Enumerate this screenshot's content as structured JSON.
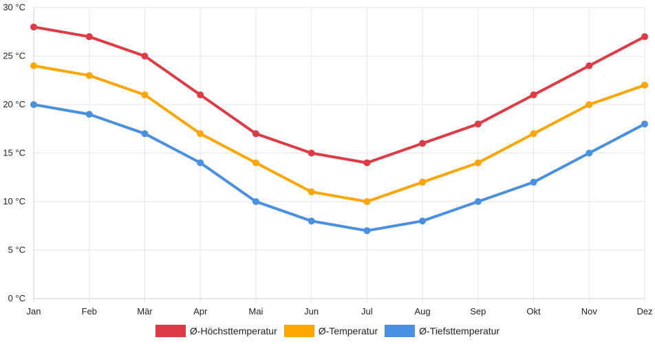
{
  "chart_data": {
    "type": "line",
    "categories": [
      "Jan",
      "Feb",
      "Mär",
      "Apr",
      "Mai",
      "Jun",
      "Jul",
      "Aug",
      "Sep",
      "Okt",
      "Nov",
      "Dez"
    ],
    "series": [
      {
        "name": "Ø-Höchsttemperatur",
        "color": "#e03a46",
        "values": [
          28,
          27,
          25,
          21,
          17,
          15,
          14,
          16,
          18,
          21,
          24,
          27
        ]
      },
      {
        "name": "Ø-Temperatur",
        "color": "#ffa600",
        "values": [
          24,
          23,
          21,
          17,
          14,
          11,
          10,
          12,
          14,
          17,
          20,
          22
        ]
      },
      {
        "name": "Ø-Tiefsttemperatur",
        "color": "#4a90e2",
        "values": [
          20,
          19,
          17,
          14,
          10,
          8,
          7,
          8,
          10,
          12,
          15,
          18
        ]
      }
    ],
    "ylim": [
      0,
      30
    ],
    "yticks": [
      0,
      5,
      10,
      15,
      20,
      25,
      30
    ],
    "ytick_labels": [
      "0 °C",
      "5 °C",
      "10 °C",
      "15 °C",
      "20 °C",
      "25 °C",
      "30 °C"
    ],
    "grid": true,
    "legend_position": "bottom"
  }
}
